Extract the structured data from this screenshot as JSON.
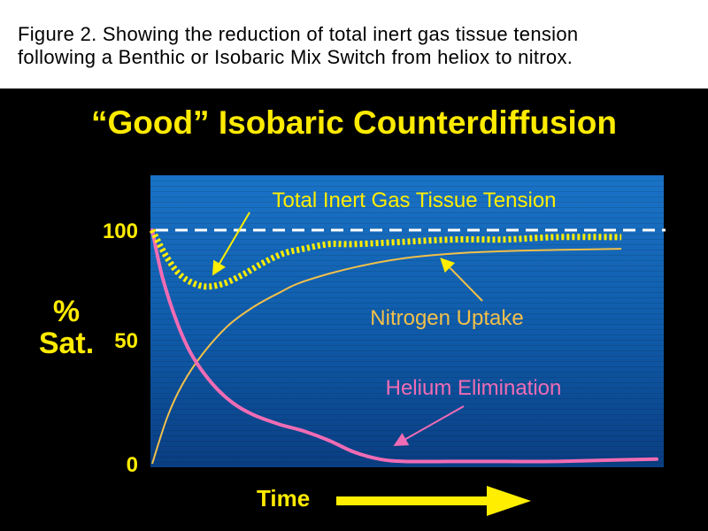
{
  "caption": {
    "line1": "Figure 2.  Showing the reduction of total inert gas tissue tension",
    "line2": "following a Benthic or Isobaric Mix Switch from heliox to nitrox."
  },
  "colors": {
    "title": "#ffeb00",
    "helium": "#f06cb4",
    "nitrogen": "#f2c04a",
    "total": "#ffee00",
    "reference": "#ffffff"
  },
  "chart_data": {
    "type": "line",
    "title": "“Good” Isobaric Counterdiffusion",
    "xlabel": "Time",
    "ylabel_line1": "%",
    "ylabel_line2": "Sat.",
    "ylim": [
      0,
      120
    ],
    "xlim": [
      0,
      100
    ],
    "yticks": [
      "0",
      "50",
      "100"
    ],
    "grid": false,
    "reference_line": {
      "value": 100,
      "style": "dashed"
    },
    "annotations": [
      "Total Inert Gas Tissue Tension",
      "Nitrogen Uptake",
      "Helium Elimination"
    ],
    "series": [
      {
        "name": "Helium Elimination",
        "x": [
          0,
          2,
          5,
          8,
          12,
          16,
          20,
          25,
          30,
          35,
          40,
          45,
          50,
          60,
          70,
          80,
          90,
          100
        ],
        "y": [
          100,
          80,
          60,
          46,
          34,
          26,
          21,
          17,
          14,
          10,
          5,
          2,
          1,
          1,
          1,
          1,
          1.5,
          2
        ]
      },
      {
        "name": "Nitrogen Uptake",
        "x": [
          0,
          3,
          6,
          10,
          15,
          20,
          25,
          30,
          40,
          50,
          60,
          70,
          80,
          93
        ],
        "y": [
          0,
          20,
          34,
          47,
          59,
          67,
          73,
          78,
          84,
          88,
          90,
          91,
          91.5,
          92
        ]
      },
      {
        "name": "Total Inert Gas Tissue Tension",
        "x": [
          0,
          3,
          6,
          10,
          14,
          18,
          22,
          26,
          30,
          35,
          40,
          50,
          60,
          70,
          80,
          93
        ],
        "y": [
          100,
          88,
          80,
          76,
          77,
          81,
          86,
          90,
          92,
          94,
          94,
          95,
          96,
          96,
          97,
          97
        ]
      }
    ]
  }
}
